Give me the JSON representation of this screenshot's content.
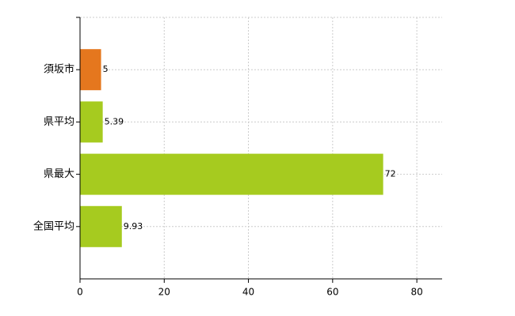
{
  "chart_data": {
    "type": "hbar",
    "categories": [
      "須坂市",
      "県平均",
      "県最大",
      "全国平均"
    ],
    "values": [
      5,
      5.39,
      72,
      9.93
    ],
    "colors": [
      "#e5771e",
      "#a6cb1f",
      "#a6cb1f",
      "#a6cb1f"
    ],
    "xlim": [
      0,
      86
    ],
    "xticks": [
      0,
      20,
      40,
      60,
      80
    ],
    "grid": true
  }
}
